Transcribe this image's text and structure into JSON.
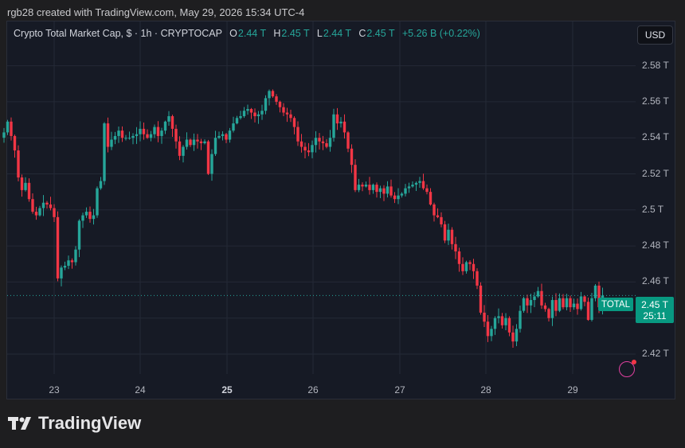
{
  "attribution": "rgb28 created with TradingView.com, May 29, 2026 15:34 UTC-4",
  "header": {
    "symbol": "Crypto Total Market Cap, $ · 1h · CRYPTOCAP",
    "open_label": "O",
    "open": "2.44 T",
    "high_label": "H",
    "high": "2.45 T",
    "low_label": "L",
    "low": "2.44 T",
    "close_label": "C",
    "close": "2.45 T",
    "change": "+5.26 B (+0.22%)"
  },
  "currency_button": "USD",
  "price_tag": {
    "label": "TOTAL",
    "price": "2.45 T",
    "countdown": "25:11"
  },
  "logo_text": "TradingView",
  "colors": {
    "up": "#26a69a",
    "down": "#f23645",
    "background": "#161a25",
    "grid": "#242936"
  },
  "chart_data": {
    "type": "candlestick",
    "unit": "T USD",
    "ylim": [
      2.405,
      2.59
    ],
    "y_ticks": [
      "2.42 T",
      "2.44 T",
      "2.46 T",
      "2.48 T",
      "2.5 T",
      "2.52 T",
      "2.54 T",
      "2.56 T",
      "2.58 T"
    ],
    "y_tick_values": [
      2.42,
      2.44,
      2.46,
      2.48,
      2.5,
      2.52,
      2.54,
      2.56,
      2.58
    ],
    "x_ticks": [
      "23",
      "24",
      "25",
      "26",
      "27",
      "28",
      "29"
    ],
    "x_bold_tick": "25",
    "last_price": 2.4525,
    "series": [
      {
        "day": "22",
        "close": [
          2.543,
          2.549,
          2.541,
          2.533,
          2.518,
          2.511,
          2.515,
          2.506,
          2.499,
          2.497,
          2.501,
          2.504,
          2.503,
          2.501
        ]
      },
      {
        "day": "23",
        "close": [
          2.496,
          2.462,
          2.468,
          2.469,
          2.472,
          2.471,
          2.478,
          2.494,
          2.497,
          2.499,
          2.495,
          2.497,
          2.512,
          2.516,
          2.548,
          2.535,
          2.539,
          2.541,
          2.544,
          2.54,
          2.54,
          2.54,
          2.541,
          2.542
        ]
      },
      {
        "day": "24",
        "close": [
          2.545,
          2.542,
          2.54,
          2.542,
          2.546,
          2.541,
          2.544,
          2.549,
          2.552,
          2.545,
          2.538,
          2.53,
          2.535,
          2.539,
          2.536,
          2.539,
          2.538,
          2.537,
          2.538,
          2.52,
          2.531,
          2.54,
          2.541,
          2.542
        ]
      },
      {
        "day": "25",
        "close": [
          2.539,
          2.544,
          2.548,
          2.551,
          2.552,
          2.555,
          2.556,
          2.554,
          2.552,
          2.553,
          2.555,
          2.562,
          2.566,
          2.563,
          2.56,
          2.557,
          2.554,
          2.553,
          2.551,
          2.546,
          2.538,
          2.535,
          2.533,
          2.532
        ]
      },
      {
        "day": "26",
        "close": [
          2.536,
          2.54,
          2.538,
          2.537,
          2.535,
          2.54,
          2.553,
          2.548,
          2.549,
          2.543,
          2.534,
          2.525,
          2.511,
          2.514,
          2.513,
          2.514,
          2.511,
          2.514,
          2.51,
          2.512,
          2.509,
          2.513,
          2.508,
          2.506
        ]
      },
      {
        "day": "27",
        "close": [
          2.508,
          2.509,
          2.512,
          2.513,
          2.514,
          2.515,
          2.516,
          2.512,
          2.51,
          2.503,
          2.497,
          2.496,
          2.492,
          2.483,
          2.489,
          2.481,
          2.477,
          2.47,
          2.466,
          2.471,
          2.47,
          2.466,
          2.458,
          2.443
        ]
      },
      {
        "day": "28",
        "close": [
          2.438,
          2.43,
          2.434,
          2.44,
          2.441,
          2.436,
          2.44,
          2.432,
          2.427,
          2.434,
          2.444,
          2.451,
          2.447,
          2.45,
          2.452,
          2.455,
          2.447,
          2.445,
          2.44,
          2.45,
          2.444,
          2.451,
          2.446,
          2.451
        ]
      },
      {
        "day": "29",
        "close": [
          2.446,
          2.448,
          2.445,
          2.452,
          2.449,
          2.439,
          2.451,
          2.458,
          2.446,
          2.4525
        ]
      }
    ]
  }
}
